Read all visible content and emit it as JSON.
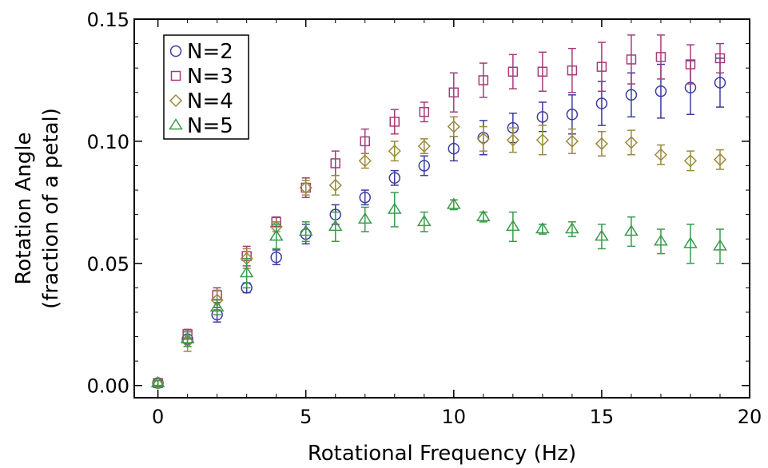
{
  "chart_data": {
    "type": "scatter",
    "title": "",
    "xlabel": "Rotational Frequency (Hz)",
    "ylabel_line1": "Rotation Angle",
    "ylabel_line2": "(fraction of a petal)",
    "xlim": [
      -0.8,
      20
    ],
    "ylim": [
      -0.005,
      0.15
    ],
    "xticks": [
      0,
      5,
      10,
      15,
      20
    ],
    "xtick_labels": [
      "0",
      "5",
      "10",
      "15",
      "20"
    ],
    "yticks": [
      0.0,
      0.05,
      0.1,
      0.15
    ],
    "ytick_labels": [
      "0.00",
      "0.05",
      "0.10",
      "0.15"
    ],
    "grid": false,
    "legend_position": "top-left",
    "x": [
      0,
      1,
      2,
      3,
      4,
      5,
      6,
      7,
      8,
      9,
      10,
      11,
      12,
      13,
      14,
      15,
      16,
      17,
      18,
      19
    ],
    "series": [
      {
        "name": "N=2",
        "marker": "circle",
        "color": "#3b3ba0",
        "values": [
          0.001,
          0.019,
          0.029,
          0.04,
          0.0525,
          0.062,
          0.07,
          0.077,
          0.085,
          0.09,
          0.097,
          0.1015,
          0.1055,
          0.11,
          0.111,
          0.1155,
          0.119,
          0.1205,
          0.122,
          0.124
        ],
        "errors": [
          0.001,
          0.003,
          0.003,
          0.002,
          0.003,
          0.004,
          0.004,
          0.003,
          0.003,
          0.004,
          0.005,
          0.007,
          0.006,
          0.006,
          0.008,
          0.009,
          0.009,
          0.011,
          0.011,
          0.01
        ]
      },
      {
        "name": "N=3",
        "marker": "square",
        "color": "#a63c7a",
        "values": [
          0.001,
          0.021,
          0.037,
          0.053,
          0.067,
          0.081,
          0.091,
          0.1,
          0.108,
          0.112,
          0.12,
          0.125,
          0.1285,
          0.1285,
          0.129,
          0.1305,
          0.1335,
          0.1345,
          0.1315,
          0.134
        ],
        "errors": [
          0.001,
          0.002,
          0.003,
          0.004,
          0.002,
          0.004,
          0.005,
          0.005,
          0.005,
          0.004,
          0.008,
          0.007,
          0.007,
          0.008,
          0.009,
          0.01,
          0.01,
          0.009,
          0.008,
          0.006
        ]
      },
      {
        "name": "N=4",
        "marker": "diamond",
        "color": "#9a8a3a",
        "values": [
          0.001,
          0.018,
          0.035,
          0.052,
          0.065,
          0.081,
          0.082,
          0.092,
          0.096,
          0.098,
          0.106,
          0.101,
          0.1005,
          0.1005,
          0.1,
          0.099,
          0.0995,
          0.0945,
          0.092,
          0.0925
        ],
        "errors": [
          0.001,
          0.004,
          0.004,
          0.004,
          0.002,
          0.003,
          0.004,
          0.003,
          0.004,
          0.003,
          0.004,
          0.005,
          0.005,
          0.006,
          0.005,
          0.005,
          0.005,
          0.004,
          0.004,
          0.004
        ]
      },
      {
        "name": "N=5",
        "marker": "triangle",
        "color": "#3a9a4a",
        "values": [
          0.001,
          0.019,
          0.032,
          0.046,
          0.061,
          0.063,
          0.065,
          0.068,
          0.072,
          0.067,
          0.074,
          0.069,
          0.065,
          0.064,
          0.064,
          0.061,
          0.063,
          0.059,
          0.058,
          0.057
        ],
        "errors": [
          0.001,
          0.003,
          0.003,
          0.006,
          0.005,
          0.004,
          0.006,
          0.005,
          0.007,
          0.004,
          0.002,
          0.002,
          0.006,
          0.002,
          0.003,
          0.005,
          0.006,
          0.005,
          0.008,
          0.007
        ]
      }
    ]
  }
}
